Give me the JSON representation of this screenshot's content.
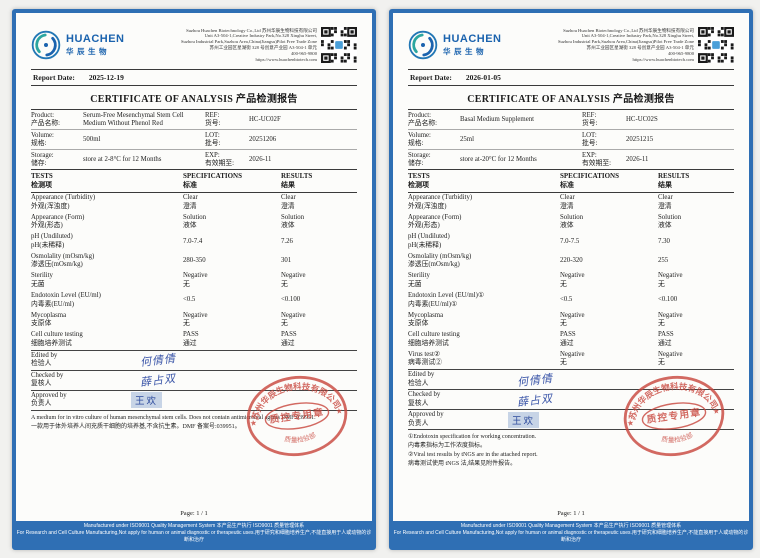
{
  "shared": {
    "company": {
      "name_en": "HUACHEN",
      "name_cn": "华辰生物",
      "address_lines": [
        "Suzhou Huachen Biotechnology Co.,Ltd 苏州华辰生物科技有限公司",
        "Unit A3-504-1,Creative Industry Park,No.328 Xinghu Street,",
        "Suzhou Industrial Park,Suzhou Area,China(Jiangsu)Pilot Free Trade Zone",
        "苏州工业园区星湖街 328 号创意产业园 A3-504-1 单元",
        "400-965-9800",
        "https://www.huachenbiotech.com"
      ]
    },
    "title": "CERTIFICATE OF ANALYSIS 产品检测报告",
    "labels": {
      "report_date": "Report Date:",
      "product_en": "Product:",
      "product_cn": "产品名称:",
      "ref_en": "REF:",
      "ref_cn": "货号:",
      "volume_en": "Volume:",
      "volume_cn": "规格:",
      "lot_en": "LOT:",
      "lot_cn": "批号:",
      "storage_en": "Storage:",
      "storage_cn": "储存:",
      "exp_en": "EXP:",
      "exp_cn": "有效期至:",
      "tests_en": "TESTS",
      "tests_cn": "检测项",
      "specifications_en": "SPECIFICATIONS",
      "specifications_cn": "标准",
      "results_en": "RESULTS",
      "results_cn": "结果",
      "edited_by_en": "Edited by",
      "edited_by_cn": "检验人",
      "checked_by_en": "Checked by",
      "checked_by_cn": "复核人",
      "approved_by_en": "Approved by",
      "approved_by_cn": "负责人"
    },
    "signatures": {
      "edited": "何倩倩",
      "checked": "薛占双",
      "approved": "王欢"
    },
    "stamp": {
      "ring_top": "苏州华辰生物科技有限公司",
      "center": "质控专用章",
      "ring_bottom": "质量检验部",
      "star": "★"
    },
    "page_number": "Page: 1 / 1",
    "footer_bar": {
      "line1": "Manufactured under ISO9001 Quality Management System  本产品生产执行 ISO9001 质量管理体系",
      "line2": "For Research and Cell Culture Manufacturing,Not apply for human or animal diagnostic or therapeutic uses.用于研究和细胞培养生产,不能直接用于人或动物的诊断和治疗"
    }
  },
  "docs": [
    {
      "report_date": "2025-12-19",
      "product_lines": [
        "Serum-Free Mesenchymal Stem Cell",
        "Medium Without Phenol Red"
      ],
      "ref": "HC-UC02F",
      "volume": "500ml",
      "lot": "20251206",
      "storage": "store at 2-8°C for 12 Months",
      "exp": "2026-11",
      "tests": [
        {
          "en": "Appearance (Turbidity)",
          "cn": "外观(浑浊度)",
          "spec": [
            "Clear",
            "澄清"
          ],
          "res": [
            "Clear",
            "澄清"
          ]
        },
        {
          "en": "Appearance (Form)",
          "cn": "外观(形态)",
          "spec": [
            "Solution",
            "液体"
          ],
          "res": [
            "Solution",
            "液体"
          ]
        },
        {
          "en": "pH (Undiluted)",
          "cn": "pH(未稀释)",
          "spec": [
            "7.0-7.4"
          ],
          "res": [
            "7.26"
          ]
        },
        {
          "en": "Osmolality (mOsm/kg)",
          "cn": "渗透压(mOsm/kg)",
          "spec": [
            "280-350"
          ],
          "res": [
            "301"
          ]
        },
        {
          "en": "Sterility",
          "cn": "无菌",
          "spec": [
            "Negative",
            "无"
          ],
          "res": [
            "Negative",
            "无"
          ]
        },
        {
          "en": "Endotoxin Level (EU/ml)",
          "cn": "内毒素(EU/ml)",
          "spec": [
            "<0.5"
          ],
          "res": [
            "<0.100"
          ]
        },
        {
          "en": "Mycoplasma",
          "cn": "支原体",
          "spec": [
            "Negative",
            "无"
          ],
          "res": [
            "Negative",
            "无"
          ]
        },
        {
          "en": "Cell culture testing",
          "cn": "细胞培养测试",
          "spec": [
            "PASS",
            "通过"
          ],
          "res": [
            "PASS",
            "通过"
          ]
        }
      ],
      "notes": [
        "A medium for in vitro culture of human mesenchymal stem cells. Does not contain antimicrobial agents DMF:039951.",
        "一款用于体外培养人间充质干细胞的培养基,不含抗生素。DMF 备案号:039951。"
      ]
    },
    {
      "report_date": "2026-01-05",
      "product_lines": [
        "Basal Medium Supplement"
      ],
      "ref": "HC-UC02S",
      "volume": "25ml",
      "lot": "20251215",
      "storage": "store at-20°C for 12 Months",
      "exp": "2026-11",
      "tests": [
        {
          "en": "Appearance (Turbidity)",
          "cn": "外观(浑浊度)",
          "spec": [
            "Clear",
            "澄清"
          ],
          "res": [
            "Clear",
            "澄清"
          ]
        },
        {
          "en": "Appearance (Form)",
          "cn": "外观(形态)",
          "spec": [
            "Solution",
            "液体"
          ],
          "res": [
            "Solution",
            "液体"
          ]
        },
        {
          "en": "pH (Undiluted)",
          "cn": "pH(未稀释)",
          "spec": [
            "7.0-7.5"
          ],
          "res": [
            "7.30"
          ]
        },
        {
          "en": "Osmolality (mOsm/kg)",
          "cn": "渗透压(mOsm/kg)",
          "spec": [
            "220-320"
          ],
          "res": [
            "255"
          ]
        },
        {
          "en": "Sterility",
          "cn": "无菌",
          "spec": [
            "Negative",
            "无"
          ],
          "res": [
            "Negative",
            "无"
          ]
        },
        {
          "en": "Endotoxin Level (EU/ml)①",
          "cn": "内毒素(EU/ml)①",
          "spec": [
            "<0.5"
          ],
          "res": [
            "<0.100"
          ]
        },
        {
          "en": "Mycoplasma",
          "cn": "支原体",
          "spec": [
            "Negative",
            "无"
          ],
          "res": [
            "Negative",
            "无"
          ]
        },
        {
          "en": "Cell culture testing",
          "cn": "细胞培养测试",
          "spec": [
            "PASS",
            "通过"
          ],
          "res": [
            "PASS",
            "通过"
          ]
        },
        {
          "en": "Virus test②",
          "cn": "病毒测试②",
          "spec": [
            "Negative",
            "无"
          ],
          "res": [
            "Negative",
            "无"
          ]
        }
      ],
      "notes": [
        "①Endotoxin specification for working concentration.",
        "内毒素指标为工作浓度指标。",
        "②Viral test results by tNGS are in the attached report.",
        "病毒测试使用 tNGS 法,结果见附件报告。"
      ]
    }
  ]
}
